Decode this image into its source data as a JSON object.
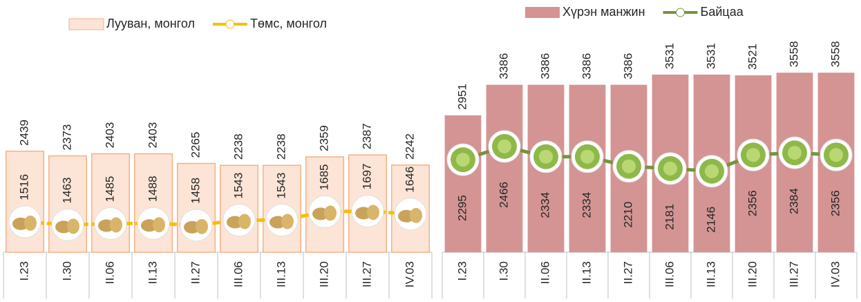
{
  "chart_data": [
    {
      "type": "bar",
      "categories": [
        "I.23",
        "I.30",
        "II.06",
        "II.13",
        "II.27",
        "III.06",
        "III.13",
        "III.20",
        "III.27",
        "IV.03"
      ],
      "series": [
        {
          "name": "Лууван, монгол",
          "type": "bar",
          "color": "#fce4d6",
          "values": [
            2439,
            2373,
            2403,
            2403,
            2265,
            2238,
            2238,
            2359,
            2387,
            2242
          ]
        },
        {
          "name": "Төмс, монгол",
          "type": "line",
          "axis": "y2",
          "color": "#f5c000",
          "values": [
            1516,
            1463,
            1485,
            1488,
            1458,
            1543,
            1543,
            1685,
            1697,
            1646
          ]
        }
      ],
      "ylim": [
        1000,
        4200
      ],
      "y2lim": [
        1000,
        4800
      ]
    },
    {
      "type": "bar",
      "categories": [
        "I.23",
        "I.30",
        "II.06",
        "II.13",
        "II.27",
        "III.06",
        "III.13",
        "III.20",
        "III.27",
        "IV.03"
      ],
      "series": [
        {
          "name": "Хүрэн манжин",
          "type": "bar",
          "color": "#d49494",
          "values": [
            2951,
            3386,
            3386,
            3386,
            3386,
            3531,
            3531,
            3521,
            3558,
            3558
          ]
        },
        {
          "name": "Байцаа",
          "type": "line",
          "axis": "y2",
          "color": "#77933c",
          "values": [
            2295,
            2466,
            2334,
            2334,
            2210,
            2181,
            2146,
            2356,
            2384,
            2356
          ]
        }
      ],
      "ylim": [
        1000,
        4200
      ],
      "y2lim": [
        1100,
        4000
      ]
    }
  ]
}
